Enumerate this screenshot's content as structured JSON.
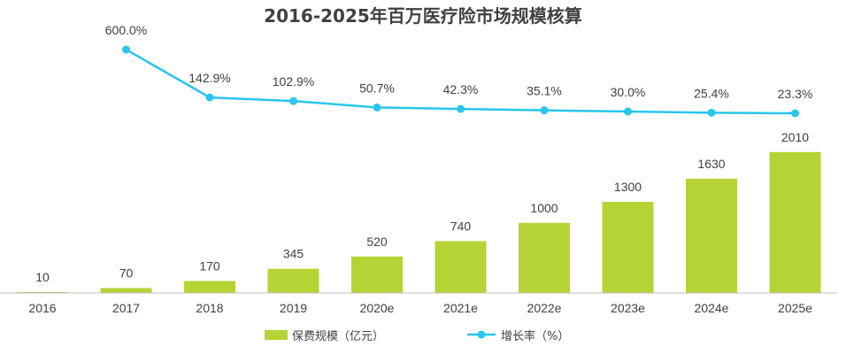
{
  "chart_data": {
    "type": "bar+line",
    "title": "2016-2025年百万医疗险市场规模核算",
    "categories": [
      "2016",
      "2017",
      "2018",
      "2019",
      "2020e",
      "2021e",
      "2022e",
      "2023e",
      "2024e",
      "2025e"
    ],
    "series": [
      {
        "name": "保费规模（亿元）",
        "type": "bar",
        "color": "#b5d334",
        "values": [
          10,
          70,
          170,
          345,
          520,
          740,
          1000,
          1300,
          1630,
          2010
        ]
      },
      {
        "name": "增长率（%）",
        "type": "line",
        "color": "#29c5ec",
        "values": [
          null,
          600.0,
          142.9,
          102.9,
          50.7,
          42.3,
          35.1,
          30.0,
          25.4,
          23.3
        ],
        "labels": [
          "",
          "600.0%",
          "142.9%",
          "102.9%",
          "50.7%",
          "42.3%",
          "35.1%",
          "30.0%",
          "25.4%",
          "23.3%"
        ]
      }
    ],
    "xlabel": "",
    "ylabel": "",
    "legend_position": "bottom"
  }
}
